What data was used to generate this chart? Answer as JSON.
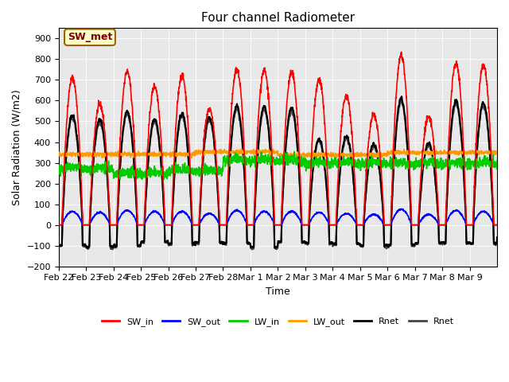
{
  "title": "Four channel Radiometer",
  "xlabel": "Time",
  "ylabel": "Solar Radiation (W/m2)",
  "ylim": [
    -200,
    950
  ],
  "yticks": [
    -200,
    -100,
    0,
    100,
    200,
    300,
    400,
    500,
    600,
    700,
    800,
    900
  ],
  "plot_bg_color": "#e8e8e8",
  "annotation_box": "SW_met",
  "annotation_box_bg": "#ffffcc",
  "annotation_box_border": "#996600",
  "annotation_box_text_color": "#800000",
  "x_tick_labels": [
    "Feb 22",
    "Feb 23",
    "Feb 24",
    "Feb 25",
    "Feb 26",
    "Feb 27",
    "Feb 28",
    "Mar 1",
    "Mar 2",
    "Mar 3",
    "Mar 4",
    "Mar 5",
    "Mar 6",
    "Mar 7",
    "Mar 8",
    "Mar 9"
  ],
  "legend_entries": [
    "SW_in",
    "SW_out",
    "LW_in",
    "LW_out",
    "Rnet",
    "Rnet"
  ],
  "legend_colors": [
    "#ff0000",
    "#0000ff",
    "#00cc00",
    "#ff9900",
    "#000000",
    "#444444"
  ],
  "line_widths": [
    1.2,
    1.2,
    1.2,
    1.2,
    1.5,
    1.5
  ],
  "num_days": 16,
  "points_per_day": 144
}
